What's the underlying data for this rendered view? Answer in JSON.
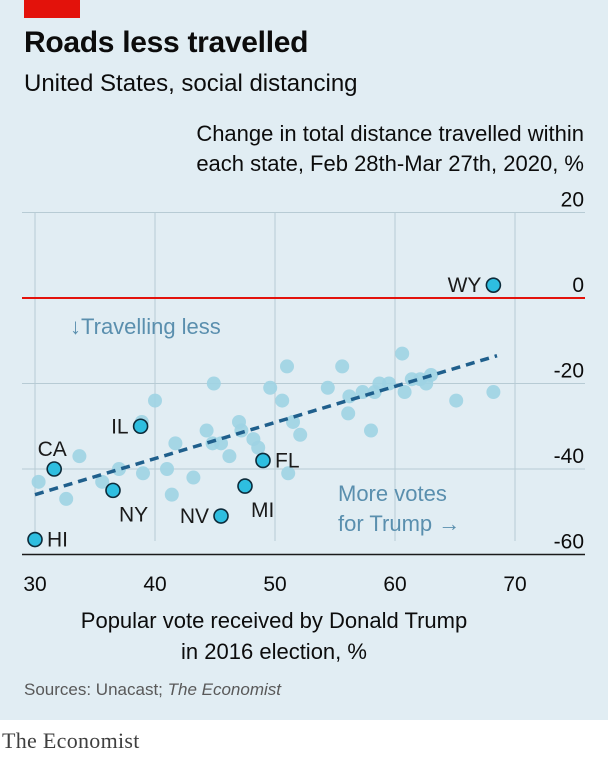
{
  "header": {
    "title": "Roads less travelled",
    "subtitle": "United States, social distancing"
  },
  "footer": {
    "source_prefix": "Sources: Unacast; ",
    "source_italic": "The Economist",
    "brand": "The Economist"
  },
  "colors": {
    "background": "#e1edf3",
    "brand_red": "#e3120b",
    "point_fill": "#9ed3e3",
    "highlight_fill": "#2ebee0",
    "highlight_stroke": "#0d2b3a",
    "trend_line": "#1f5f8c",
    "zero_line": "#e3120b",
    "grid": "#b7cbd4"
  },
  "chart_data": {
    "type": "scatter",
    "title": "Change in total distance travelled within each state, Feb 28th-Mar 27th, 2020, %",
    "title_lines": [
      "Change in total distance travelled within",
      "each state, Feb 28th-Mar 27th, 2020, %"
    ],
    "xlabel": "Popular vote received by Donald Trump in 2016 election, %",
    "xlabel_lines": [
      "Popular vote received by Donald Trump",
      "in 2016 election, %"
    ],
    "ylabel": "",
    "xlim": [
      30,
      70
    ],
    "ylim": [
      -60,
      20
    ],
    "x_ticks": [
      30,
      40,
      50,
      60,
      70
    ],
    "y_ticks": [
      20,
      0,
      -20,
      -40,
      -60
    ],
    "x_tick_labels": [
      "30",
      "40",
      "50",
      "60",
      "70"
    ],
    "y_tick_labels": [
      "20",
      "0",
      "-20",
      "-40",
      "-60"
    ],
    "grid": true,
    "zero_line": 0,
    "annotations": {
      "travelling_less": "↓Travelling less",
      "more_votes_line1": "More votes",
      "more_votes_line2": "for Trump →"
    },
    "trend_line": {
      "x": [
        30,
        68.5
      ],
      "y": [
        -46,
        -13.5
      ]
    },
    "highlighted": [
      {
        "label": "WY",
        "x": 68.2,
        "y": 3,
        "label_pos": "left"
      },
      {
        "label": "IL",
        "x": 38.8,
        "y": -30,
        "label_pos": "left"
      },
      {
        "label": "CA",
        "x": 31.6,
        "y": -40,
        "label_pos": "top"
      },
      {
        "label": "FL",
        "x": 49.0,
        "y": -38,
        "label_pos": "right"
      },
      {
        "label": "NY",
        "x": 36.5,
        "y": -45,
        "label_pos": "below-right"
      },
      {
        "label": "MI",
        "x": 47.5,
        "y": -44,
        "label_pos": "below-right"
      },
      {
        "label": "NV",
        "x": 45.5,
        "y": -51,
        "label_pos": "left"
      },
      {
        "label": "HI",
        "x": 30.0,
        "y": -56.5,
        "label_pos": "right"
      }
    ],
    "points": [
      {
        "x": 30.3,
        "y": -43
      },
      {
        "x": 32.6,
        "y": -47
      },
      {
        "x": 33.7,
        "y": -37
      },
      {
        "x": 35.6,
        "y": -43
      },
      {
        "x": 37.0,
        "y": -40
      },
      {
        "x": 38.9,
        "y": -29
      },
      {
        "x": 39.0,
        "y": -41
      },
      {
        "x": 40.0,
        "y": -24
      },
      {
        "x": 41.0,
        "y": -40
      },
      {
        "x": 41.4,
        "y": -46
      },
      {
        "x": 41.7,
        "y": -34
      },
      {
        "x": 43.2,
        "y": -42
      },
      {
        "x": 44.3,
        "y": -31
      },
      {
        "x": 44.8,
        "y": -34
      },
      {
        "x": 44.9,
        "y": -20
      },
      {
        "x": 45.5,
        "y": -34
      },
      {
        "x": 46.2,
        "y": -37
      },
      {
        "x": 47.0,
        "y": -29
      },
      {
        "x": 47.2,
        "y": -31
      },
      {
        "x": 48.2,
        "y": -33
      },
      {
        "x": 48.6,
        "y": -35
      },
      {
        "x": 49.6,
        "y": -21
      },
      {
        "x": 50.6,
        "y": -24
      },
      {
        "x": 51.0,
        "y": -16
      },
      {
        "x": 51.1,
        "y": -41
      },
      {
        "x": 51.5,
        "y": -29
      },
      {
        "x": 52.1,
        "y": -32
      },
      {
        "x": 54.4,
        "y": -21
      },
      {
        "x": 55.6,
        "y": -16
      },
      {
        "x": 56.1,
        "y": -27
      },
      {
        "x": 56.2,
        "y": -23
      },
      {
        "x": 57.3,
        "y": -22
      },
      {
        "x": 58.0,
        "y": -31
      },
      {
        "x": 58.3,
        "y": -22
      },
      {
        "x": 58.7,
        "y": -20
      },
      {
        "x": 59.5,
        "y": -20
      },
      {
        "x": 60.6,
        "y": -13
      },
      {
        "x": 60.8,
        "y": -22
      },
      {
        "x": 61.4,
        "y": -19
      },
      {
        "x": 62.1,
        "y": -19
      },
      {
        "x": 62.6,
        "y": -20
      },
      {
        "x": 63.0,
        "y": -18
      },
      {
        "x": 65.1,
        "y": -24
      },
      {
        "x": 68.2,
        "y": -22
      }
    ]
  }
}
